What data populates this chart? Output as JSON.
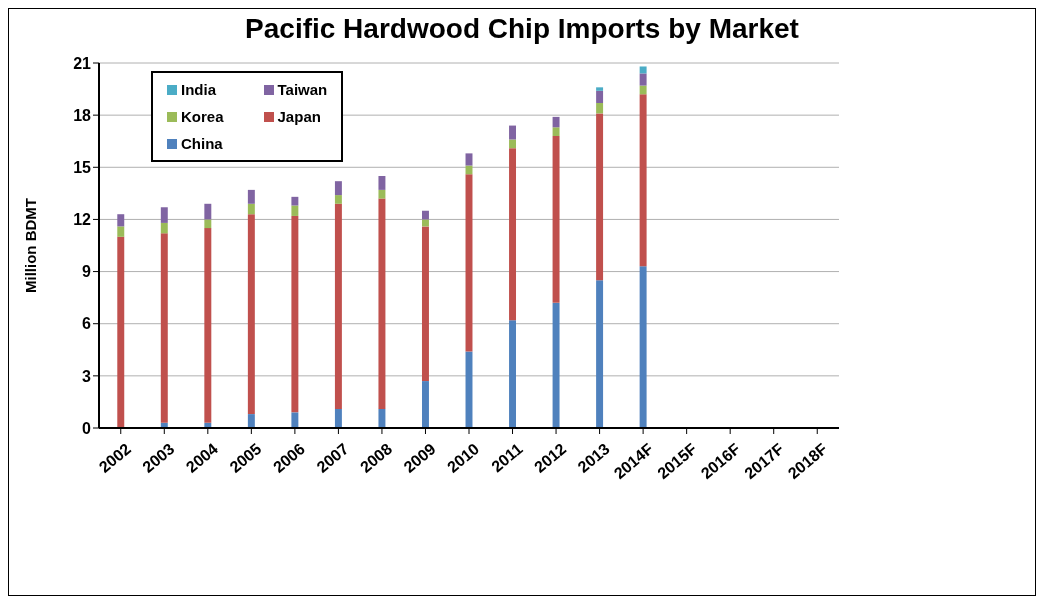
{
  "chart_data": {
    "type": "bar",
    "title": "Pacific Hardwood Chip Imports by Market",
    "ylabel": "Million BDMT",
    "categories": [
      "2002",
      "2003",
      "2004",
      "2005",
      "2006",
      "2007",
      "2008",
      "2009",
      "2010",
      "2011",
      "2012",
      "2013",
      "2014F",
      "2015F",
      "2016F",
      "2017F",
      "2018F"
    ],
    "stacked": true,
    "series": [
      {
        "name": "China",
        "color": "#4f81bd",
        "values": [
          0,
          0.3,
          0.3,
          0.8,
          0.9,
          1.1,
          1.1,
          2.7,
          4.4,
          6.2,
          7.2,
          8.5,
          9.3,
          null,
          null,
          null,
          null
        ]
      },
      {
        "name": "Japan",
        "color": "#c0504d",
        "values": [
          11.0,
          10.9,
          11.2,
          11.5,
          11.3,
          11.8,
          12.1,
          8.9,
          10.2,
          9.9,
          9.6,
          9.6,
          9.9,
          null,
          null,
          null,
          null
        ]
      },
      {
        "name": "Korea",
        "color": "#9bbb59",
        "values": [
          0.6,
          0.6,
          0.5,
          0.6,
          0.6,
          0.5,
          0.5,
          0.4,
          0.5,
          0.5,
          0.5,
          0.6,
          0.5,
          null,
          null,
          null,
          null
        ]
      },
      {
        "name": "Taiwan",
        "color": "#8064a2",
        "values": [
          0.7,
          0.9,
          0.9,
          0.8,
          0.5,
          0.8,
          0.8,
          0.5,
          0.7,
          0.8,
          0.6,
          0.7,
          0.7,
          null,
          null,
          null,
          null
        ]
      },
      {
        "name": "India",
        "color": "#4bacc6",
        "values": [
          0,
          0,
          0,
          0,
          0,
          0,
          0,
          0,
          0,
          0,
          0,
          0.2,
          0.4,
          null,
          null,
          null,
          null
        ]
      }
    ],
    "ylim": [
      0,
      21
    ],
    "yticks": [
      0,
      3,
      6,
      9,
      12,
      15,
      18,
      21
    ],
    "grid": "y",
    "legend": "top left"
  }
}
